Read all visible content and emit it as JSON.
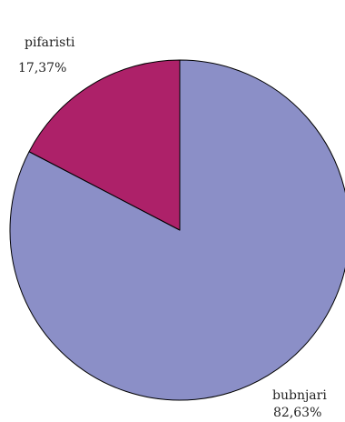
{
  "chart_data": {
    "type": "pie",
    "title": "",
    "slices": [
      {
        "label": "bubnjari",
        "value": 82.63,
        "value_label": "82,63%",
        "color": "#8b8fc7"
      },
      {
        "label": "pifaristi",
        "value": 17.37,
        "value_label": "17,37%",
        "color": "#ad2169"
      }
    ],
    "start_angle": "12 o'clock",
    "direction": "clockwise",
    "legend": "none",
    "outline_color": "#000000"
  }
}
